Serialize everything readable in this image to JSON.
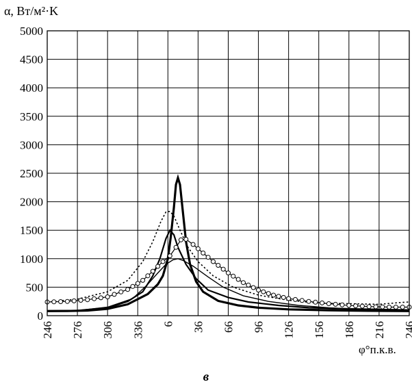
{
  "chart_data": {
    "type": "line",
    "ylabel": "α, Вт/м²·K",
    "xlabel": "φ°п.к.в.",
    "caption": "в",
    "ylim": [
      0,
      5000
    ],
    "y_ticks": [
      "0",
      "500",
      "1000",
      "1500",
      "2000",
      "2500",
      "3000",
      "3500",
      "4000",
      "4500",
      "5000"
    ],
    "x_ticks": [
      "246",
      "276",
      "306",
      "336",
      "6",
      "36",
      "66",
      "96",
      "126",
      "156",
      "186",
      "216",
      "246"
    ],
    "grid": true,
    "series": [
      {
        "style": "thick-solid",
        "points": [
          {
            "x": 0,
            "y": 80
          },
          {
            "x": 20,
            "y": 82
          },
          {
            "x": 40,
            "y": 90
          },
          {
            "x": 60,
            "y": 120
          },
          {
            "x": 80,
            "y": 200
          },
          {
            "x": 100,
            "y": 380
          },
          {
            "x": 110,
            "y": 550
          },
          {
            "x": 115,
            "y": 700
          },
          {
            "x": 120,
            "y": 1000
          },
          {
            "x": 123,
            "y": 1400
          },
          {
            "x": 126,
            "y": 1900
          },
          {
            "x": 128,
            "y": 2300
          },
          {
            "x": 130,
            "y": 2420
          },
          {
            "x": 132,
            "y": 2300
          },
          {
            "x": 135,
            "y": 1800
          },
          {
            "x": 138,
            "y": 1300
          },
          {
            "x": 142,
            "y": 900
          },
          {
            "x": 148,
            "y": 600
          },
          {
            "x": 155,
            "y": 420
          },
          {
            "x": 170,
            "y": 260
          },
          {
            "x": 190,
            "y": 180
          },
          {
            "x": 210,
            "y": 140
          },
          {
            "x": 240,
            "y": 110
          },
          {
            "x": 280,
            "y": 95
          },
          {
            "x": 320,
            "y": 85
          },
          {
            "x": 360,
            "y": 80
          }
        ]
      },
      {
        "style": "medium-solid",
        "points": [
          {
            "x": 0,
            "y": 85
          },
          {
            "x": 30,
            "y": 90
          },
          {
            "x": 60,
            "y": 140
          },
          {
            "x": 80,
            "y": 250
          },
          {
            "x": 95,
            "y": 420
          },
          {
            "x": 105,
            "y": 700
          },
          {
            "x": 112,
            "y": 1000
          },
          {
            "x": 118,
            "y": 1350
          },
          {
            "x": 122,
            "y": 1500
          },
          {
            "x": 126,
            "y": 1420
          },
          {
            "x": 130,
            "y": 1200
          },
          {
            "x": 138,
            "y": 900
          },
          {
            "x": 148,
            "y": 650
          },
          {
            "x": 160,
            "y": 450
          },
          {
            "x": 180,
            "y": 320
          },
          {
            "x": 200,
            "y": 240
          },
          {
            "x": 230,
            "y": 180
          },
          {
            "x": 260,
            "y": 140
          },
          {
            "x": 300,
            "y": 120
          },
          {
            "x": 330,
            "y": 110
          },
          {
            "x": 360,
            "y": 100
          }
        ]
      },
      {
        "style": "thin-solid",
        "points": [
          {
            "x": 0,
            "y": 80
          },
          {
            "x": 30,
            "y": 90
          },
          {
            "x": 60,
            "y": 150
          },
          {
            "x": 85,
            "y": 300
          },
          {
            "x": 100,
            "y": 550
          },
          {
            "x": 110,
            "y": 750
          },
          {
            "x": 118,
            "y": 900
          },
          {
            "x": 125,
            "y": 980
          },
          {
            "x": 130,
            "y": 1000
          },
          {
            "x": 135,
            "y": 970
          },
          {
            "x": 145,
            "y": 870
          },
          {
            "x": 160,
            "y": 680
          },
          {
            "x": 175,
            "y": 500
          },
          {
            "x": 195,
            "y": 350
          },
          {
            "x": 220,
            "y": 250
          },
          {
            "x": 250,
            "y": 180
          },
          {
            "x": 280,
            "y": 140
          },
          {
            "x": 310,
            "y": 110
          },
          {
            "x": 340,
            "y": 100
          },
          {
            "x": 360,
            "y": 100
          }
        ]
      },
      {
        "style": "dotted",
        "points": [
          {
            "x": 0,
            "y": 240
          },
          {
            "x": 30,
            "y": 290
          },
          {
            "x": 60,
            "y": 420
          },
          {
            "x": 80,
            "y": 620
          },
          {
            "x": 95,
            "y": 950
          },
          {
            "x": 105,
            "y": 1300
          },
          {
            "x": 113,
            "y": 1650
          },
          {
            "x": 118,
            "y": 1820
          },
          {
            "x": 122,
            "y": 1830
          },
          {
            "x": 126,
            "y": 1750
          },
          {
            "x": 132,
            "y": 1500
          },
          {
            "x": 140,
            "y": 1200
          },
          {
            "x": 150,
            "y": 950
          },
          {
            "x": 165,
            "y": 700
          },
          {
            "x": 185,
            "y": 500
          },
          {
            "x": 210,
            "y": 360
          },
          {
            "x": 240,
            "y": 270
          },
          {
            "x": 270,
            "y": 220
          },
          {
            "x": 300,
            "y": 210
          },
          {
            "x": 330,
            "y": 200
          },
          {
            "x": 350,
            "y": 230
          },
          {
            "x": 360,
            "y": 240
          }
        ]
      },
      {
        "style": "circle-markers",
        "points": [
          {
            "x": 0,
            "y": 240
          },
          {
            "x": 20,
            "y": 250
          },
          {
            "x": 40,
            "y": 280
          },
          {
            "x": 60,
            "y": 330
          },
          {
            "x": 80,
            "y": 460
          },
          {
            "x": 95,
            "y": 620
          },
          {
            "x": 105,
            "y": 780
          },
          {
            "x": 115,
            "y": 950
          },
          {
            "x": 122,
            "y": 1050
          },
          {
            "x": 128,
            "y": 1200
          },
          {
            "x": 133,
            "y": 1330
          },
          {
            "x": 138,
            "y": 1340
          },
          {
            "x": 145,
            "y": 1250
          },
          {
            "x": 155,
            "y": 1100
          },
          {
            "x": 165,
            "y": 950
          },
          {
            "x": 180,
            "y": 750
          },
          {
            "x": 195,
            "y": 580
          },
          {
            "x": 210,
            "y": 450
          },
          {
            "x": 225,
            "y": 360
          },
          {
            "x": 240,
            "y": 300
          },
          {
            "x": 260,
            "y": 250
          },
          {
            "x": 280,
            "y": 210
          },
          {
            "x": 300,
            "y": 180
          },
          {
            "x": 320,
            "y": 160
          },
          {
            "x": 340,
            "y": 150
          },
          {
            "x": 360,
            "y": 150
          }
        ]
      }
    ]
  }
}
